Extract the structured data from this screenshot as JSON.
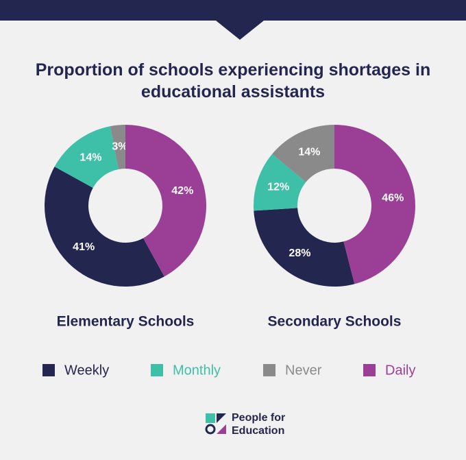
{
  "title": "Proportion of schools experiencing shortages in educational assistants",
  "chart_data": [
    {
      "type": "pie",
      "title": "Elementary Schools",
      "categories": [
        "Weekly",
        "Monthly",
        "Never",
        "Daily"
      ],
      "values": [
        41,
        14,
        3,
        42
      ],
      "value_labels": [
        "41%",
        "14%",
        "3%",
        "42%"
      ],
      "colors": [
        "#23264f",
        "#3dbfa8",
        "#8a8a8a",
        "#9b3f96"
      ]
    },
    {
      "type": "pie",
      "title": "Secondary Schools",
      "categories": [
        "Weekly",
        "Monthly",
        "Never",
        "Daily"
      ],
      "values": [
        28,
        12,
        14,
        46
      ],
      "value_labels": [
        "28%",
        "12%",
        "14%",
        "46%"
      ],
      "colors": [
        "#23264f",
        "#3dbfa8",
        "#8a8a8a",
        "#9b3f96"
      ]
    }
  ],
  "logo": [
    "People for",
    "Education"
  ]
}
